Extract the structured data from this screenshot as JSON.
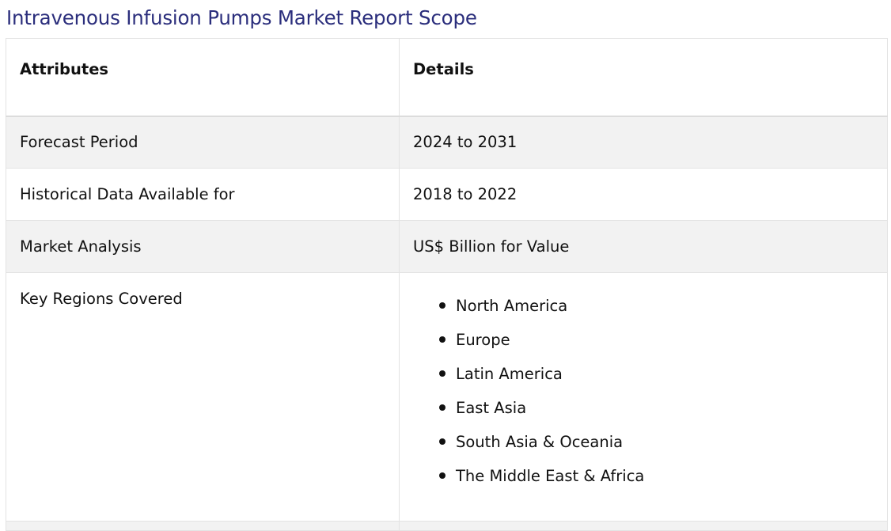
{
  "title": "Intravenous Infusion Pumps Market Report Scope",
  "table": {
    "headers": {
      "attributes": "Attributes",
      "details": "Details"
    },
    "rows": [
      {
        "attribute": "Forecast Period",
        "detail": "2024 to 2031"
      },
      {
        "attribute": "Historical Data Available for",
        "detail": "2018 to 2022"
      },
      {
        "attribute": "Market Analysis",
        "detail": "US$ Billion for Value"
      }
    ],
    "regions": {
      "attribute": "Key Regions Covered",
      "items": [
        "North America",
        "Europe",
        "Latin America",
        "East Asia",
        "South Asia & Oceania",
        "The Middle East & Africa"
      ]
    }
  }
}
